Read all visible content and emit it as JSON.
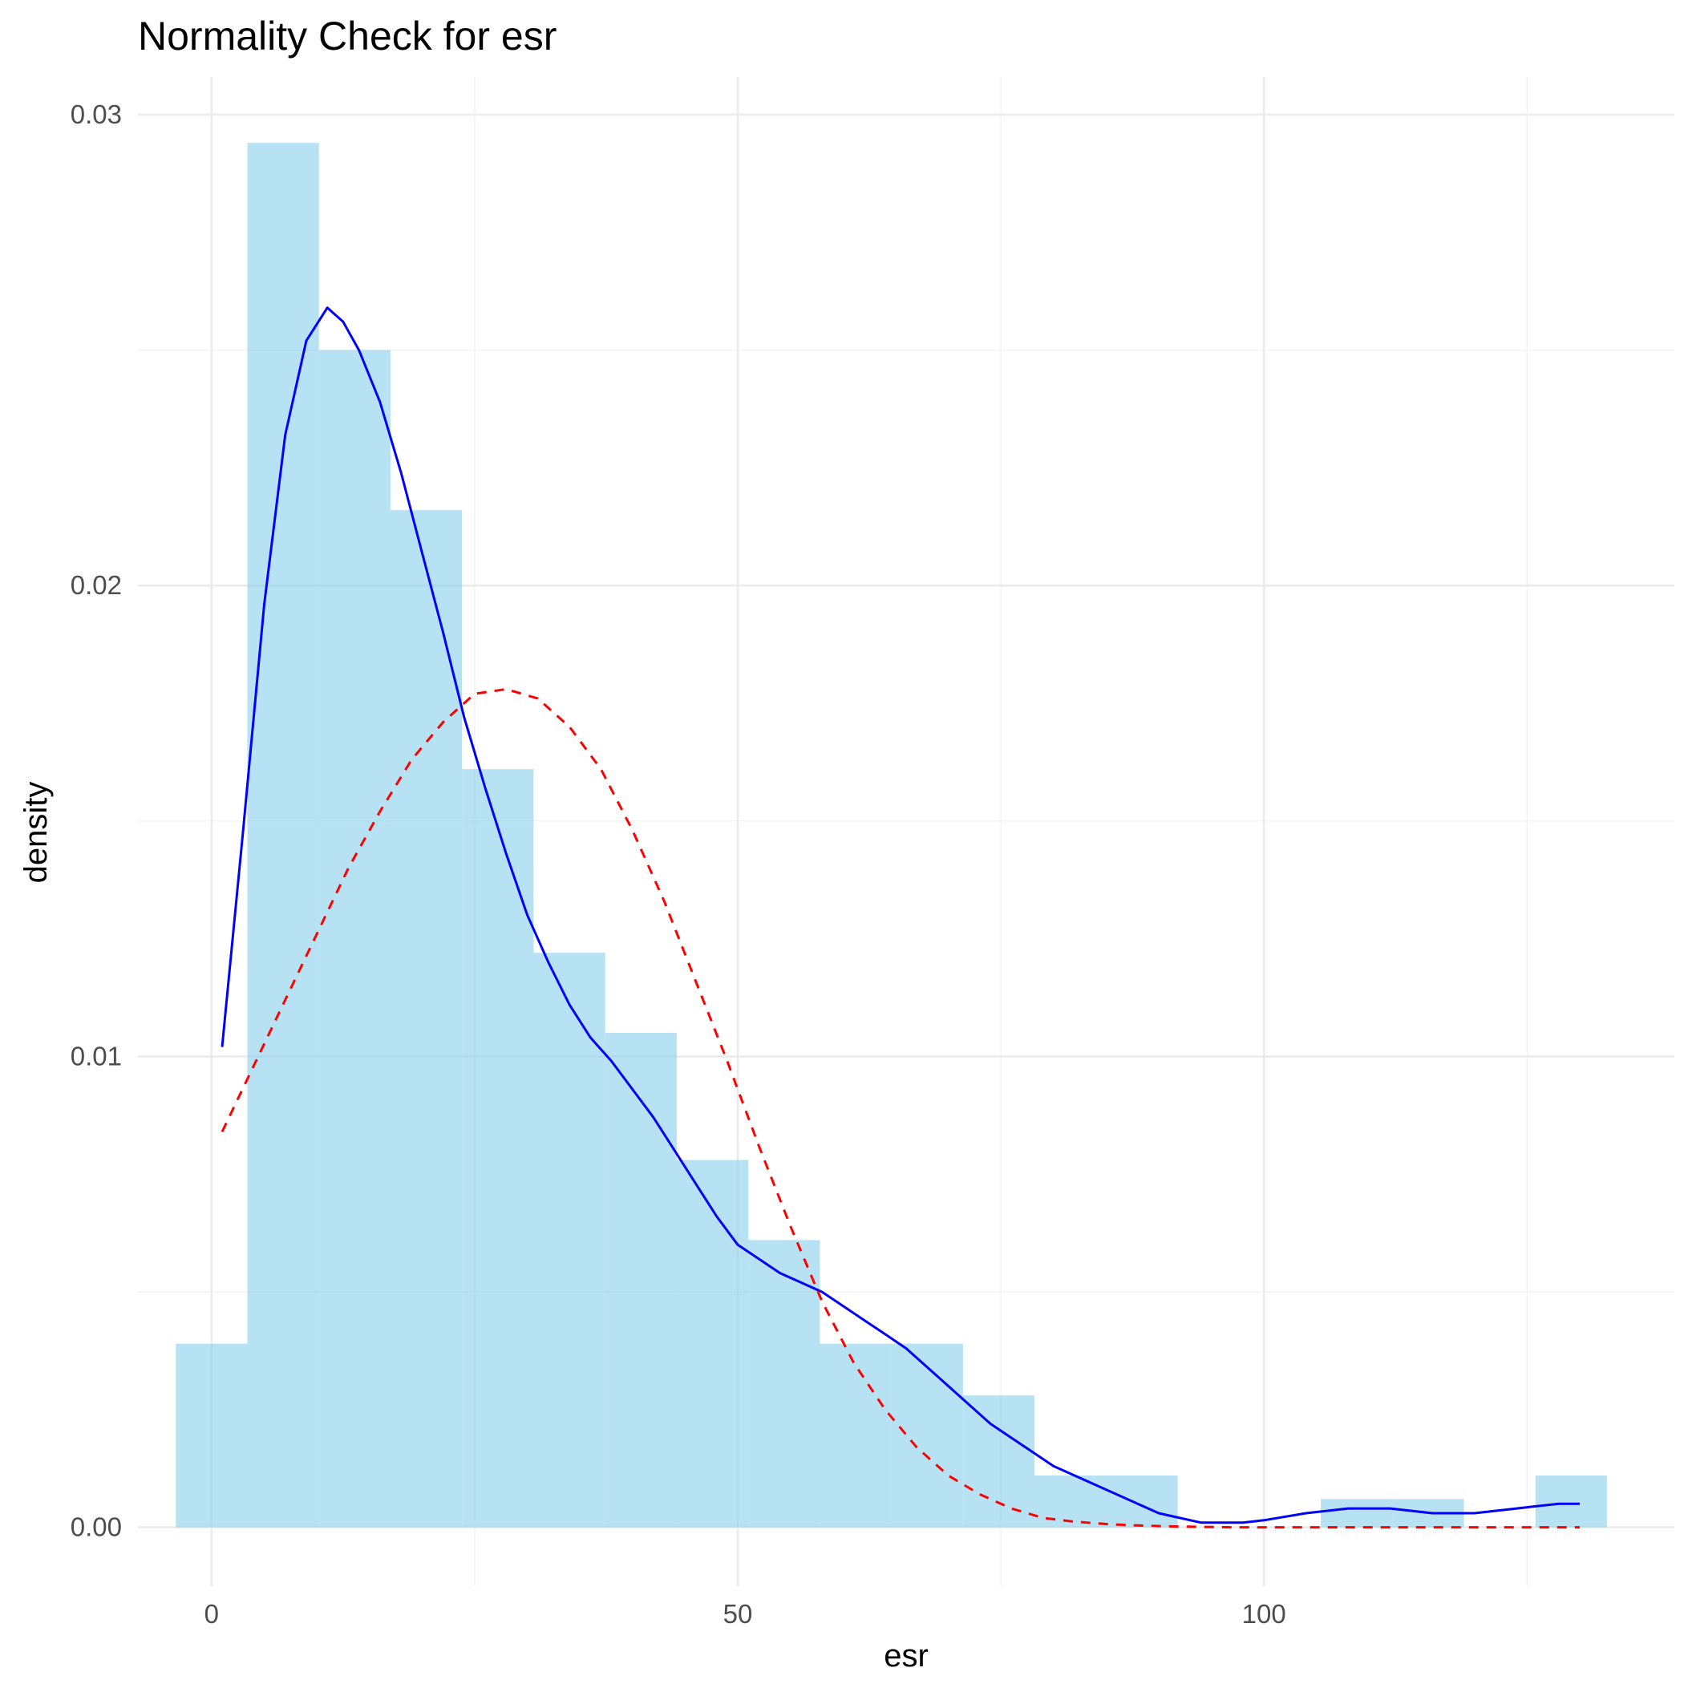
{
  "chart_data": {
    "type": "histogram",
    "title": "Normality Check for esr",
    "xlabel": "esr",
    "ylabel": "density",
    "xlim": [
      -7,
      139
    ],
    "ylim": [
      -0.00125,
      0.0308
    ],
    "x_ticks": [
      0,
      50,
      100
    ],
    "x_tick_labels": [
      "0",
      "50",
      "100"
    ],
    "x_minor_ticks": [
      25,
      75,
      125
    ],
    "y_ticks": [
      0.0,
      0.01,
      0.02,
      0.03
    ],
    "y_tick_labels": [
      "0.00",
      "0.01",
      "0.02",
      "0.03"
    ],
    "y_minor_ticks": [
      0.005,
      0.015,
      0.025
    ],
    "grid": true,
    "colors": {
      "bars": "#87ceeb",
      "density_curve": "#0000ff",
      "normal_curve": "#ff0000"
    },
    "histogram": {
      "bin_width": 6.8,
      "bins": [
        {
          "x0": -3.4,
          "x1": 3.4,
          "density": 0.0039
        },
        {
          "x0": 3.4,
          "x1": 10.2,
          "density": 0.0294
        },
        {
          "x0": 10.2,
          "x1": 17.0,
          "density": 0.025
        },
        {
          "x0": 17.0,
          "x1": 23.8,
          "density": 0.0216
        },
        {
          "x0": 23.8,
          "x1": 30.6,
          "density": 0.0161
        },
        {
          "x0": 30.6,
          "x1": 37.4,
          "density": 0.0122
        },
        {
          "x0": 37.4,
          "x1": 44.2,
          "density": 0.0105
        },
        {
          "x0": 44.2,
          "x1": 51.0,
          "density": 0.0078
        },
        {
          "x0": 51.0,
          "x1": 57.8,
          "density": 0.0061
        },
        {
          "x0": 57.8,
          "x1": 64.6,
          "density": 0.0039
        },
        {
          "x0": 64.6,
          "x1": 71.4,
          "density": 0.0039
        },
        {
          "x0": 71.4,
          "x1": 78.2,
          "density": 0.0028
        },
        {
          "x0": 78.2,
          "x1": 85.0,
          "density": 0.0011
        },
        {
          "x0": 85.0,
          "x1": 91.8,
          "density": 0.0011
        },
        {
          "x0": 91.8,
          "x1": 98.6,
          "density": 0.0
        },
        {
          "x0": 98.6,
          "x1": 105.4,
          "density": 0.0
        },
        {
          "x0": 105.4,
          "x1": 112.2,
          "density": 0.0006
        },
        {
          "x0": 112.2,
          "x1": 119.0,
          "density": 0.0006
        },
        {
          "x0": 119.0,
          "x1": 125.8,
          "density": 0.0
        },
        {
          "x0": 125.8,
          "x1": 132.6,
          "density": 0.0011
        }
      ]
    },
    "series": [
      {
        "kind": "density",
        "line_style": "solid",
        "x": [
          1,
          3,
          5,
          7,
          9,
          11,
          12.5,
          14,
          16,
          18,
          20,
          22,
          24,
          26,
          28,
          30,
          32,
          34,
          36,
          38,
          40,
          42,
          44,
          46,
          48,
          50,
          52,
          54,
          56,
          58,
          60,
          62,
          64,
          66,
          68,
          70,
          72,
          74,
          76,
          78,
          80,
          82,
          84,
          86,
          88,
          90,
          92,
          94,
          96,
          98,
          100,
          104,
          108,
          112,
          116,
          120,
          124,
          128,
          130
        ],
        "y": [
          0.0102,
          0.0148,
          0.0196,
          0.0232,
          0.0252,
          0.0259,
          0.0256,
          0.025,
          0.0239,
          0.0224,
          0.0207,
          0.019,
          0.0172,
          0.0157,
          0.0143,
          0.013,
          0.012,
          0.0111,
          0.0104,
          0.0099,
          0.0093,
          0.0087,
          0.008,
          0.0073,
          0.0066,
          0.006,
          0.0057,
          0.0054,
          0.0052,
          0.005,
          0.0047,
          0.0044,
          0.0041,
          0.0038,
          0.0034,
          0.003,
          0.0026,
          0.0022,
          0.0019,
          0.0016,
          0.0013,
          0.0011,
          0.0009,
          0.0007,
          0.0005,
          0.0003,
          0.0002,
          0.0001,
          0.0001,
          0.0001,
          0.00015,
          0.0003,
          0.0004,
          0.0004,
          0.0003,
          0.0003,
          0.0004,
          0.0005,
          0.0005
        ]
      },
      {
        "kind": "normal",
        "line_style": "dashed",
        "x": [
          1,
          4,
          7,
          10,
          13,
          16,
          19,
          22,
          25,
          28,
          31,
          34,
          37,
          40,
          43,
          46,
          49,
          52,
          55,
          58,
          61,
          64,
          67,
          70,
          73,
          76,
          79,
          82,
          85,
          88,
          91,
          94,
          97,
          100,
          105,
          110,
          115,
          120,
          125,
          130
        ],
        "y": [
          0.0084,
          0.0098,
          0.0112,
          0.0126,
          0.014,
          0.0152,
          0.0163,
          0.0171,
          0.0177,
          0.0178,
          0.0176,
          0.017,
          0.0161,
          0.0148,
          0.0133,
          0.0116,
          0.0099,
          0.0081,
          0.0064,
          0.0048,
          0.0035,
          0.0025,
          0.0017,
          0.0011,
          0.0007,
          0.0004,
          0.0002,
          0.00012,
          7e-05,
          4e-05,
          2e-05,
          1e-05,
          0.0,
          0.0,
          0.0,
          0.0,
          0.0,
          0.0,
          0.0,
          0.0
        ]
      }
    ]
  }
}
